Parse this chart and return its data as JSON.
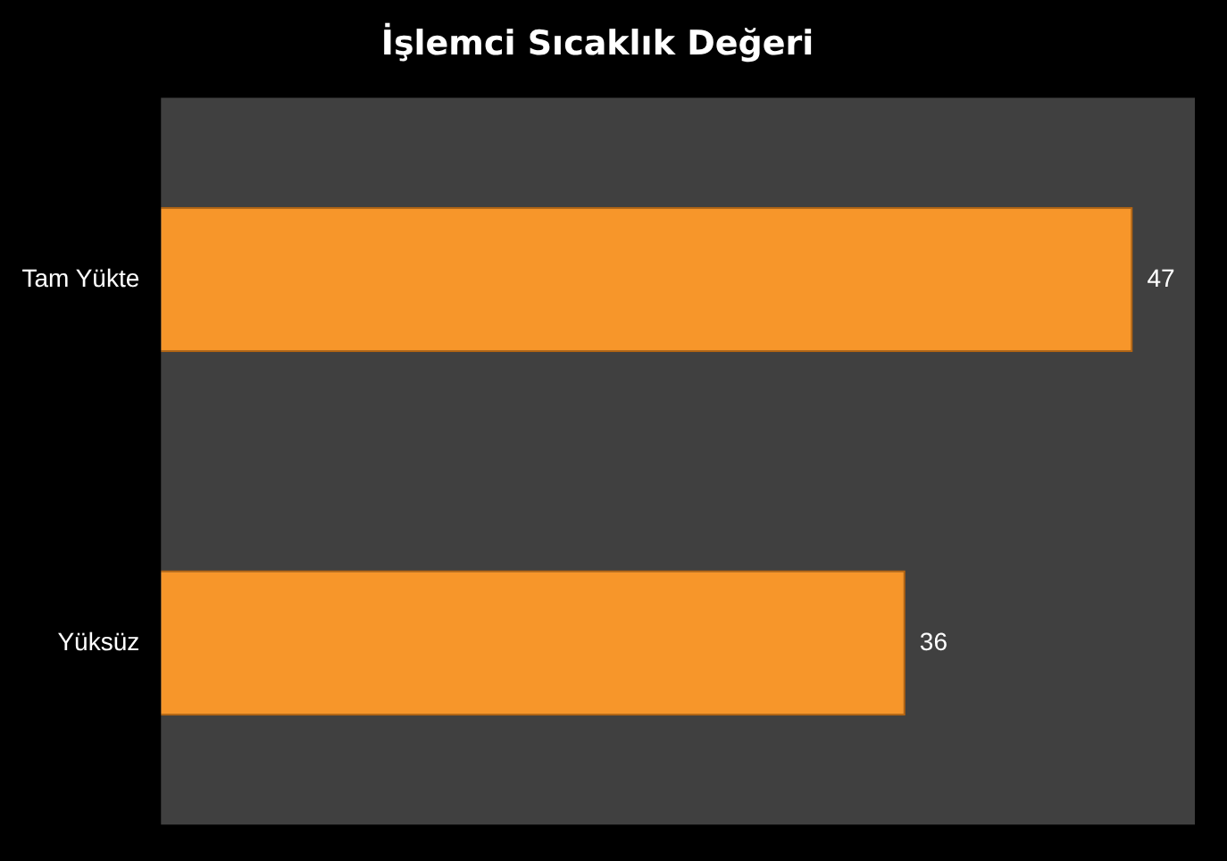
{
  "chart_data": {
    "type": "bar",
    "title": "İşlemci Sıcaklık Değeri",
    "orientation": "horizontal",
    "categories": [
      "Tam Yükte",
      "Yüksüz"
    ],
    "values": [
      47,
      36
    ],
    "color": "#f7962a",
    "xlim": [
      0,
      50
    ],
    "data_labels": true,
    "grid": false,
    "legend": false,
    "tick_labels": "y"
  }
}
